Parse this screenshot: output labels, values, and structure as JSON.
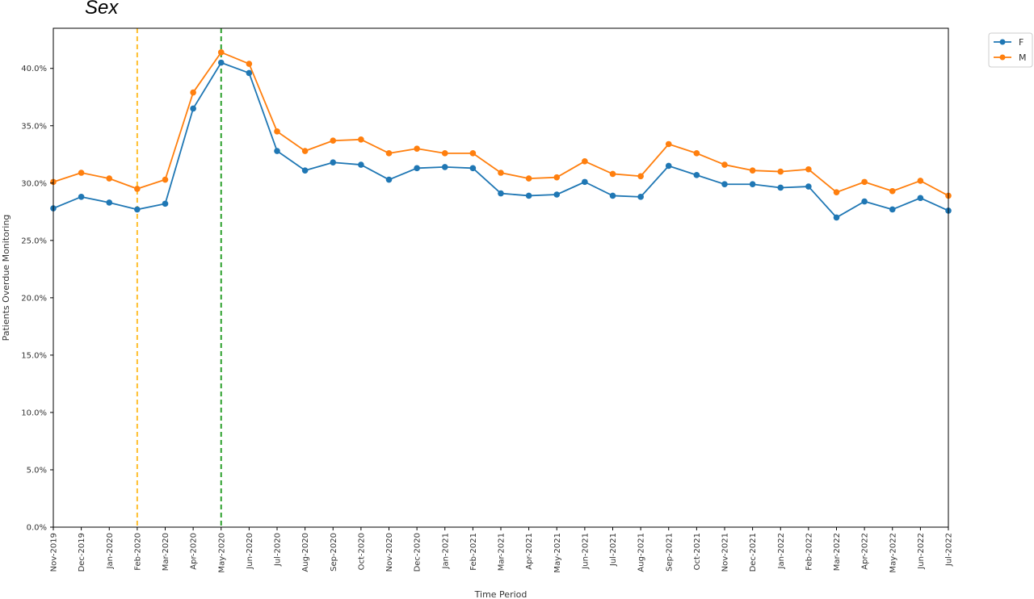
{
  "page_title": "Sex",
  "chart_data": {
    "type": "line",
    "title": "Sex",
    "xlabel": "Time Period",
    "ylabel": "Patients Overdue Monitoring",
    "ylim": [
      0,
      43.5
    ],
    "y_ticks": [
      "0.0%",
      "5.0%",
      "10.0%",
      "15.0%",
      "20.0%",
      "25.0%",
      "30.0%",
      "35.0%",
      "40.0%"
    ],
    "y_tick_values": [
      0,
      5,
      10,
      15,
      20,
      25,
      30,
      35,
      40
    ],
    "categories": [
      "Nov-2019",
      "Dec-2019",
      "Jan-2020",
      "Feb-2020",
      "Mar-2020",
      "Apr-2020",
      "May-2020",
      "Jun-2020",
      "Jul-2020",
      "Aug-2020",
      "Sep-2020",
      "Oct-2020",
      "Nov-2020",
      "Dec-2020",
      "Jan-2021",
      "Feb-2021",
      "Mar-2021",
      "Apr-2021",
      "May-2021",
      "Jun-2021",
      "Jul-2021",
      "Aug-2021",
      "Sep-2021",
      "Oct-2021",
      "Nov-2021",
      "Dec-2021",
      "Jan-2022",
      "Feb-2022",
      "Mar-2022",
      "Apr-2022",
      "May-2022",
      "Jun-2022",
      "Jul-2022"
    ],
    "series": [
      {
        "name": "F",
        "color": "#1f77b4",
        "values": [
          27.8,
          28.8,
          28.3,
          27.7,
          28.2,
          36.5,
          40.5,
          39.6,
          32.8,
          31.1,
          31.8,
          31.6,
          30.3,
          31.3,
          31.4,
          31.3,
          29.1,
          28.9,
          29.0,
          30.1,
          28.9,
          28.8,
          31.5,
          30.7,
          29.9,
          29.9,
          29.6,
          29.7,
          27.0,
          28.4,
          27.7,
          28.7,
          27.6
        ]
      },
      {
        "name": "M",
        "color": "#ff7f0e",
        "values": [
          30.1,
          30.9,
          30.4,
          29.5,
          30.3,
          37.9,
          41.4,
          40.4,
          34.5,
          32.8,
          33.7,
          33.8,
          32.6,
          33.0,
          32.6,
          32.6,
          30.9,
          30.4,
          30.5,
          31.9,
          30.8,
          30.6,
          33.4,
          32.6,
          31.6,
          31.1,
          31.0,
          31.2,
          29.2,
          30.1,
          29.3,
          30.2,
          28.9
        ]
      }
    ],
    "vlines": [
      {
        "category": "Feb-2020",
        "color": "#ffbf2e",
        "style": "dashed"
      },
      {
        "category": "May-2020",
        "color": "#2ca02c",
        "style": "dashed"
      }
    ],
    "grid": false,
    "legend_position": "top-right-outside"
  }
}
